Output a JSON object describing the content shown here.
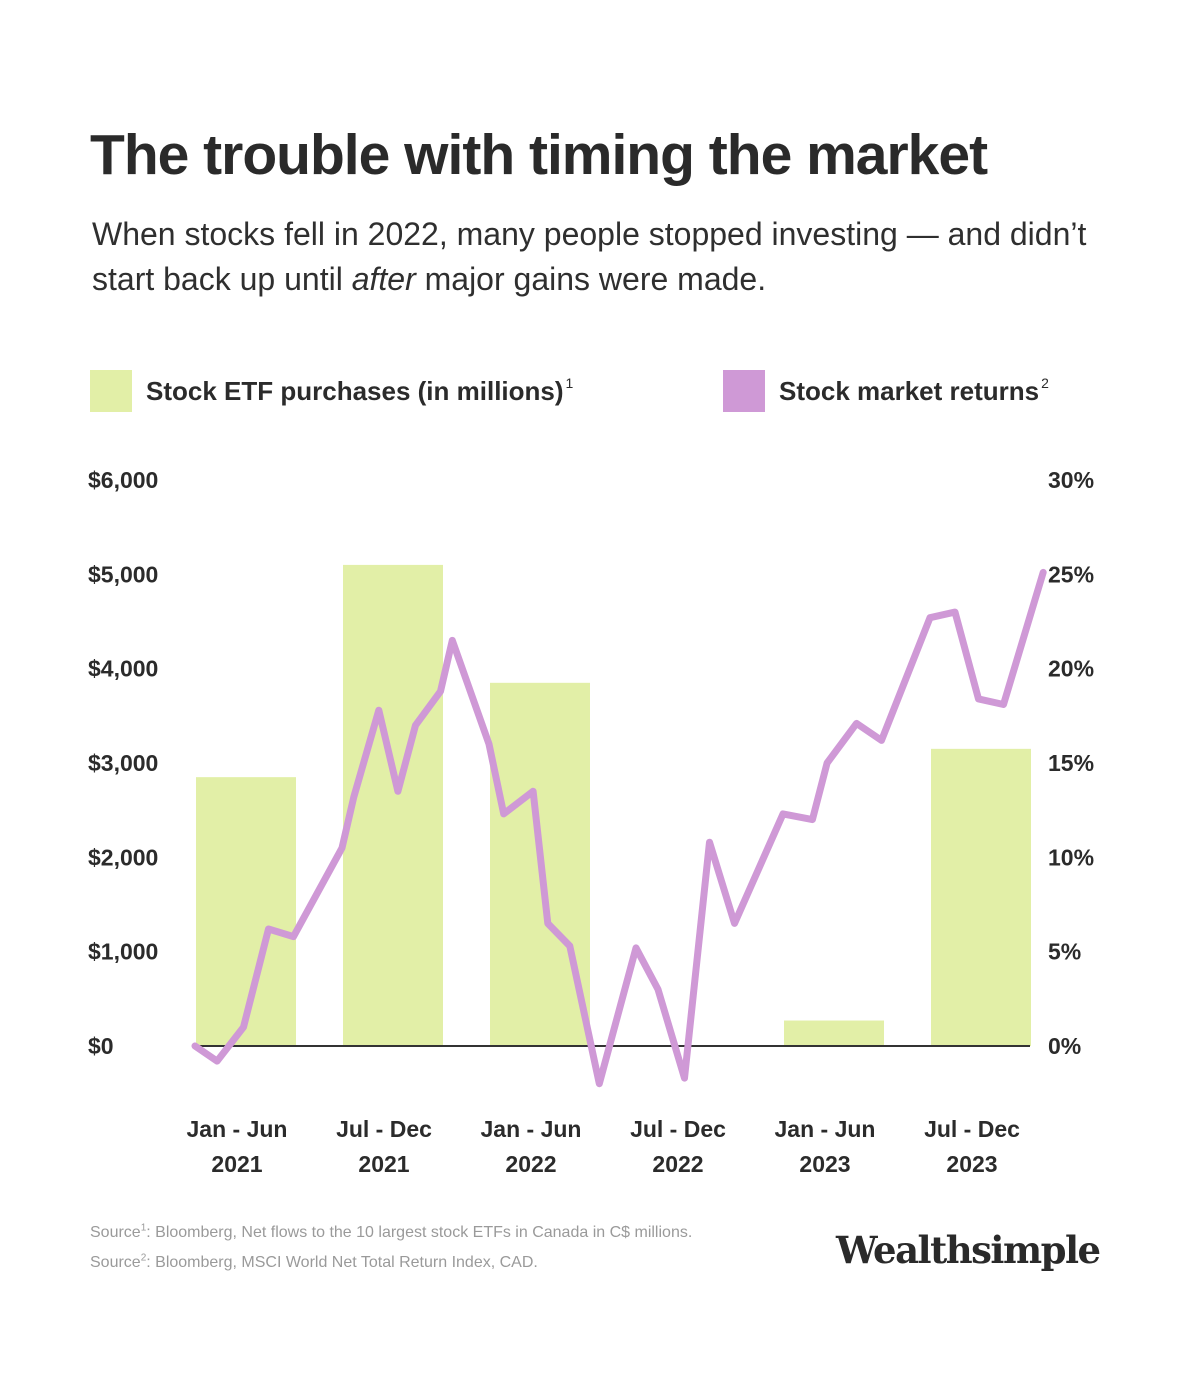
{
  "header": {
    "title": "The trouble with timing the market",
    "subtitle_part1": "When stocks fell in 2022, many people stopped investing — and didn’t start back up until ",
    "subtitle_emphasis": "after",
    "subtitle_part2": " major gains were made."
  },
  "legend": [
    {
      "label": "Stock ETF purchases (in millions)",
      "footnote": "1",
      "color": "#e2efa7"
    },
    {
      "label": "Stock market returns",
      "footnote": "2",
      "color": "#cf99d6"
    }
  ],
  "colors": {
    "bar": "#e2efa7",
    "line": "#cf99d6",
    "axis": "#333333",
    "text": "#2b2b2b"
  },
  "chart_data": {
    "type": "bar+line",
    "categories": [
      [
        "Jan - Jun",
        "2021"
      ],
      [
        "Jul - Dec",
        "2021"
      ],
      [
        "Jan - Jun",
        "2022"
      ],
      [
        "Jul - Dec",
        "2022"
      ],
      [
        "Jan - Jun",
        "2023"
      ],
      [
        "Jul - Dec",
        "2023"
      ]
    ],
    "left_axis": {
      "ticks": [
        "$6,000",
        "$5,000",
        "$4,000",
        "$3,000",
        "$2,000",
        "$1,000",
        "$0"
      ],
      "range": [
        0,
        6000
      ]
    },
    "right_axis": {
      "ticks": [
        "30%",
        "25%",
        "20%",
        "15%",
        "10%",
        "5%",
        "0%"
      ],
      "range": [
        0,
        30
      ]
    },
    "series": [
      {
        "name": "Stock ETF purchases (in millions)",
        "kind": "bar",
        "values": [
          2850,
          5100,
          3850,
          0,
          270,
          3150
        ]
      },
      {
        "name": "Stock market returns",
        "kind": "line",
        "points": [
          [
            0.0,
            0.0
          ],
          [
            0.15,
            -0.8
          ],
          [
            0.33,
            1.0
          ],
          [
            0.5,
            6.2
          ],
          [
            0.67,
            5.8
          ],
          [
            1.0,
            10.5
          ],
          [
            1.08,
            13.2
          ],
          [
            1.25,
            17.8
          ],
          [
            1.38,
            13.5
          ],
          [
            1.5,
            17.0
          ],
          [
            1.67,
            18.8
          ],
          [
            1.75,
            21.5
          ],
          [
            2.0,
            16.0
          ],
          [
            2.1,
            12.3
          ],
          [
            2.3,
            13.5
          ],
          [
            2.4,
            6.5
          ],
          [
            2.55,
            5.3
          ],
          [
            2.75,
            -2.0
          ],
          [
            3.0,
            5.2
          ],
          [
            3.15,
            3.0
          ],
          [
            3.33,
            -1.7
          ],
          [
            3.5,
            10.8
          ],
          [
            3.67,
            6.5
          ],
          [
            4.0,
            12.3
          ],
          [
            4.2,
            12.0
          ],
          [
            4.3,
            15.0
          ],
          [
            4.5,
            17.1
          ],
          [
            4.67,
            16.2
          ],
          [
            5.0,
            22.7
          ],
          [
            5.17,
            23.0
          ],
          [
            5.33,
            18.4
          ],
          [
            5.5,
            18.1
          ],
          [
            5.77,
            25.1
          ]
        ]
      }
    ]
  },
  "sources": [
    {
      "prefix": "Source",
      "footnote": "1",
      "text": ": Bloomberg, Net flows to the 10 largest stock ETFs in Canada in C$ millions."
    },
    {
      "prefix": "Source",
      "footnote": "2",
      "text": ": Bloomberg, MSCI World Net Total Return Index, CAD."
    }
  ],
  "brand": "Wealthsimple"
}
